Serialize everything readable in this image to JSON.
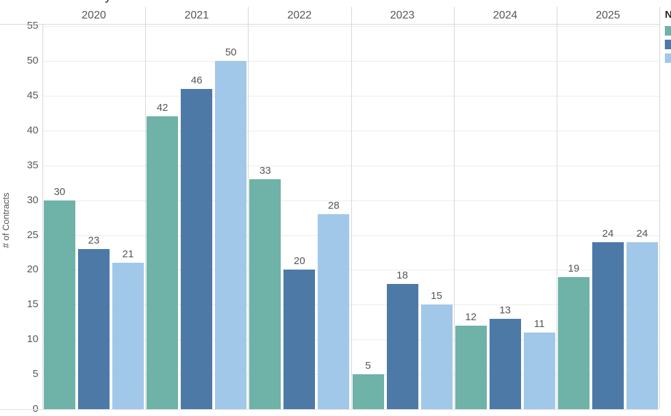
{
  "title_fragment": "y",
  "y_axis": {
    "label": "# of Contracts",
    "ticks": [
      0,
      5,
      10,
      15,
      20,
      25,
      30,
      35,
      40,
      45,
      50,
      55
    ]
  },
  "legend": {
    "title_fragment": "N",
    "cropped": true
  },
  "colors": {
    "teal": "#6fb2a8",
    "dark_blue": "#4d79a7",
    "light_blue": "#a2c8e9",
    "grid": "#ececec",
    "divider": "#d7d7d7",
    "text": "#555555"
  },
  "chart_data": {
    "type": "bar",
    "title": "",
    "xlabel": "",
    "ylabel": "# of Contracts",
    "categories": [
      "2020",
      "2021",
      "2022",
      "2023",
      "2024",
      "2025"
    ],
    "series": [
      {
        "name": "",
        "color": "#6fb2a8",
        "values": [
          30,
          42,
          33,
          5,
          12,
          19
        ]
      },
      {
        "name": "",
        "color": "#4d79a7",
        "values": [
          23,
          46,
          20,
          18,
          13,
          24
        ]
      },
      {
        "name": "",
        "color": "#a2c8e9",
        "values": [
          21,
          50,
          28,
          15,
          11,
          24
        ]
      }
    ],
    "yticks": [
      0,
      5,
      10,
      15,
      20,
      25,
      30,
      35,
      40,
      45,
      50,
      55
    ],
    "ylim": [
      0,
      55
    ],
    "grid": true,
    "bar_labels": true,
    "legend_position": "right"
  }
}
